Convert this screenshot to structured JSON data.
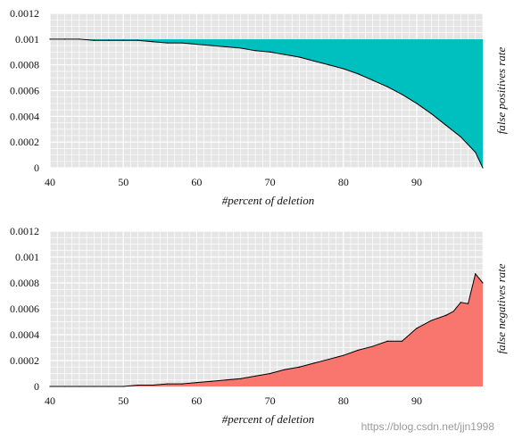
{
  "chart_data": [
    {
      "type": "area",
      "title": "",
      "xlabel": "#percent of deletion",
      "ylabel": "false positives rate",
      "xlim": [
        40,
        99
      ],
      "ylim": [
        0,
        0.0012
      ],
      "x_ticks": [
        "40",
        "50",
        "60",
        "70",
        "80",
        "90"
      ],
      "y_ticks": [
        "0",
        "0.0002",
        "0.0004",
        "0.0006",
        "0.0008",
        "0.001",
        "0.0012"
      ],
      "grid": true,
      "fill_between": "series and y=0.001",
      "colors": {
        "fill": "#00BFBF",
        "line": "#000000",
        "panel": "#E5E5E5"
      },
      "series": [
        {
          "x": [
            40,
            42,
            44,
            46,
            48,
            50,
            52,
            54,
            56,
            58,
            60,
            62,
            64,
            66,
            68,
            70,
            72,
            74,
            76,
            78,
            80,
            82,
            84,
            86,
            88,
            90,
            92,
            94,
            96,
            98,
            99
          ],
          "y": [
            0.001,
            0.001,
            0.001,
            0.00099,
            0.00099,
            0.00099,
            0.00099,
            0.00098,
            0.00097,
            0.00097,
            0.00096,
            0.00095,
            0.00094,
            0.00093,
            0.00091,
            0.0009,
            0.00088,
            0.00086,
            0.00083,
            0.0008,
            0.00077,
            0.00073,
            0.00068,
            0.00063,
            0.00057,
            0.0005,
            0.00042,
            0.00033,
            0.00024,
            0.00012,
            0.0
          ]
        }
      ]
    },
    {
      "type": "area",
      "title": "",
      "xlabel": "#percent of deletion",
      "ylabel": "false negatives rate",
      "xlim": [
        40,
        99
      ],
      "ylim": [
        0,
        0.0012
      ],
      "x_ticks": [
        "40",
        "50",
        "60",
        "70",
        "80",
        "90"
      ],
      "y_ticks": [
        "0",
        "0.0002",
        "0.0004",
        "0.0006",
        "0.0008",
        "0.001",
        "0.0012"
      ],
      "grid": true,
      "fill_between": "series and y=0",
      "colors": {
        "fill": "#F8766D",
        "line": "#000000",
        "panel": "#E5E5E5"
      },
      "series": [
        {
          "x": [
            40,
            42,
            44,
            46,
            48,
            50,
            52,
            54,
            56,
            58,
            60,
            62,
            64,
            66,
            68,
            70,
            72,
            74,
            76,
            78,
            80,
            82,
            84,
            86,
            88,
            90,
            92,
            94,
            95,
            96,
            97,
            98,
            99
          ],
          "y": [
            0.0,
            0.0,
            0.0,
            0.0,
            0.0,
            0.0,
            1e-05,
            1e-05,
            2e-05,
            2e-05,
            3e-05,
            4e-05,
            5e-05,
            6e-05,
            8e-05,
            0.0001,
            0.00013,
            0.00015,
            0.00018,
            0.00021,
            0.00024,
            0.00028,
            0.00031,
            0.00035,
            0.00035,
            0.00045,
            0.00051,
            0.00055,
            0.00058,
            0.00065,
            0.00064,
            0.00087,
            0.0008
          ]
        }
      ]
    }
  ],
  "watermark": "https://blog.csdn.net/jjn1998"
}
